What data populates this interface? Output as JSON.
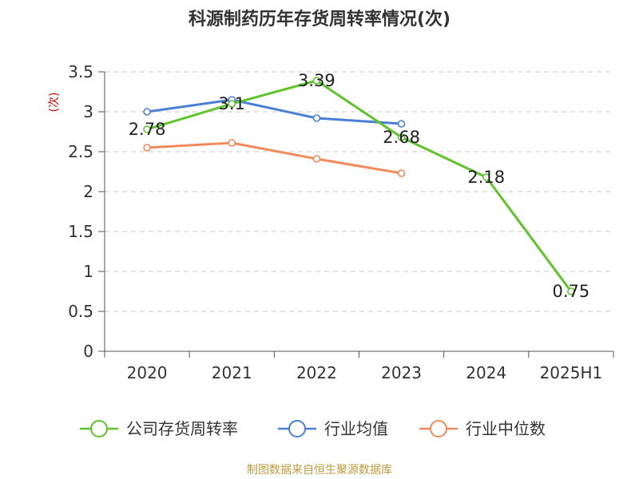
{
  "chart_data": {
    "type": "line",
    "title": "科源制药历年存货周转率情况(次)",
    "ylabel": "(次)",
    "xlabel": "",
    "categories": [
      "2020",
      "2021",
      "2022",
      "2023",
      "2024",
      "2025H1"
    ],
    "ylim": [
      0,
      3.5
    ],
    "yticks": [
      "0",
      "0.5",
      "1",
      "1.5",
      "2",
      "2.5",
      "3",
      "3.5"
    ],
    "grid": true,
    "legend_position": "bottom",
    "series": [
      {
        "name": "公司存货周转率",
        "color": "#5ec42a",
        "values": [
          2.78,
          3.1,
          3.39,
          2.68,
          2.18,
          0.75
        ],
        "labels": [
          "2.78",
          "3.1",
          "3.39",
          "2.68",
          "2.18",
          "0.75"
        ]
      },
      {
        "name": "行业均值",
        "color": "#4a7fd6",
        "values": [
          3.0,
          3.15,
          2.92,
          2.85,
          null,
          null
        ]
      },
      {
        "name": "行业中位数",
        "color": "#f08a5a",
        "values": [
          2.55,
          2.61,
          2.41,
          2.23,
          null,
          null
        ]
      }
    ]
  },
  "footer": {
    "source": "制图数据来自恒生聚源数据库"
  },
  "colors": {
    "axis": "#555555",
    "grid": "#c8c8c8",
    "ylabel": "#cc0000"
  }
}
